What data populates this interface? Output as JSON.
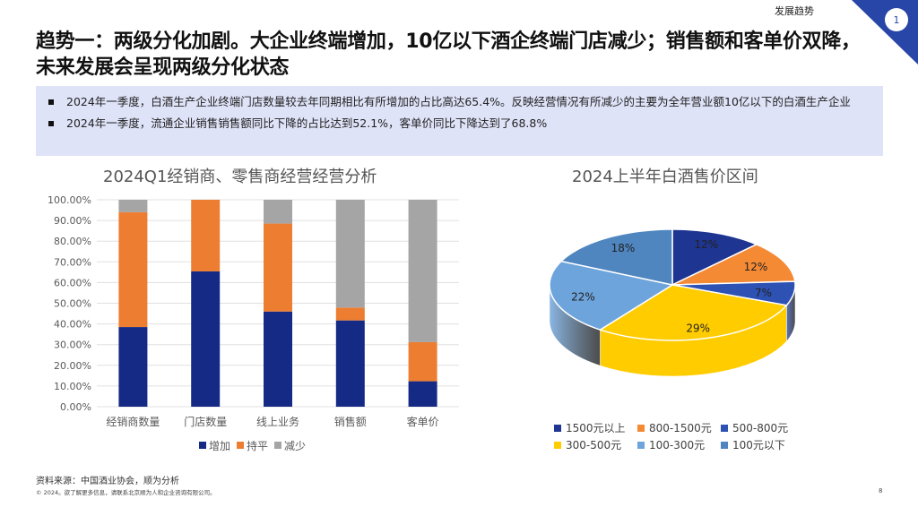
{
  "header": {
    "section": "发展趋势",
    "page_badge": "1",
    "title": "趋势一：两级分化加剧。大企业终端增加，10亿以下酒企终端门店减少；销售额和客单价双降，未来发展会呈现两级分化状态"
  },
  "bullets": [
    "2024年一季度，白酒生产企业终端门店数量较去年同期相比有所增加的占比高达65.4%。反映经营情况有所减少的主要为全年营业额10亿以下的白酒生产企业",
    "2024年一季度，流通企业销售销售额同比下降的占比达到52.1%，客单价同比下降达到了68.8%"
  ],
  "chart_data": [
    {
      "type": "bar",
      "stacked": true,
      "title": "2024Q1经销商、零售商经营经营分析",
      "categories": [
        "经销商数量",
        "门店数量",
        "线上业务",
        "销售额",
        "客单价"
      ],
      "series": [
        {
          "name": "增加",
          "color": "#142a85",
          "values": [
            38.5,
            65.4,
            46.0,
            41.7,
            12.3
          ]
        },
        {
          "name": "持平",
          "color": "#ed7d31",
          "values": [
            55.5,
            34.6,
            42.5,
            6.2,
            18.9
          ]
        },
        {
          "name": "减少",
          "color": "#a5a5a5",
          "values": [
            6.0,
            0,
            11.5,
            52.1,
            68.8
          ]
        }
      ],
      "ylim": [
        0,
        100
      ],
      "yticks": [
        "0.00%",
        "10.00%",
        "20.00%",
        "30.00%",
        "40.00%",
        "50.00%",
        "60.00%",
        "70.00%",
        "80.00%",
        "90.00%",
        "100.00%"
      ],
      "grid": true,
      "legend": "bottom"
    },
    {
      "type": "pie",
      "style": "3d",
      "title": "2024上半年白酒售价区间",
      "labels": [
        "1500元以上",
        "800-1500元",
        "500-800元",
        "300-500元",
        "100-300元",
        "100元以下"
      ],
      "values": [
        12,
        12,
        7,
        29,
        22,
        18
      ],
      "value_labels": [
        "12%",
        "12%",
        "7%",
        "29%",
        "22%",
        "18%"
      ],
      "colors": [
        "#1f3592",
        "#f58a35",
        "#2e52b3",
        "#ffcc00",
        "#6da4dc",
        "#4f86c0"
      ],
      "legend": "bottom"
    }
  ],
  "footer": {
    "source": "资料来源：中国酒业协会，顺为分析",
    "copyright": "© 2024。欲了解更多信息，请联系北京顺为人和企业咨询有限公司。",
    "page": "8"
  }
}
